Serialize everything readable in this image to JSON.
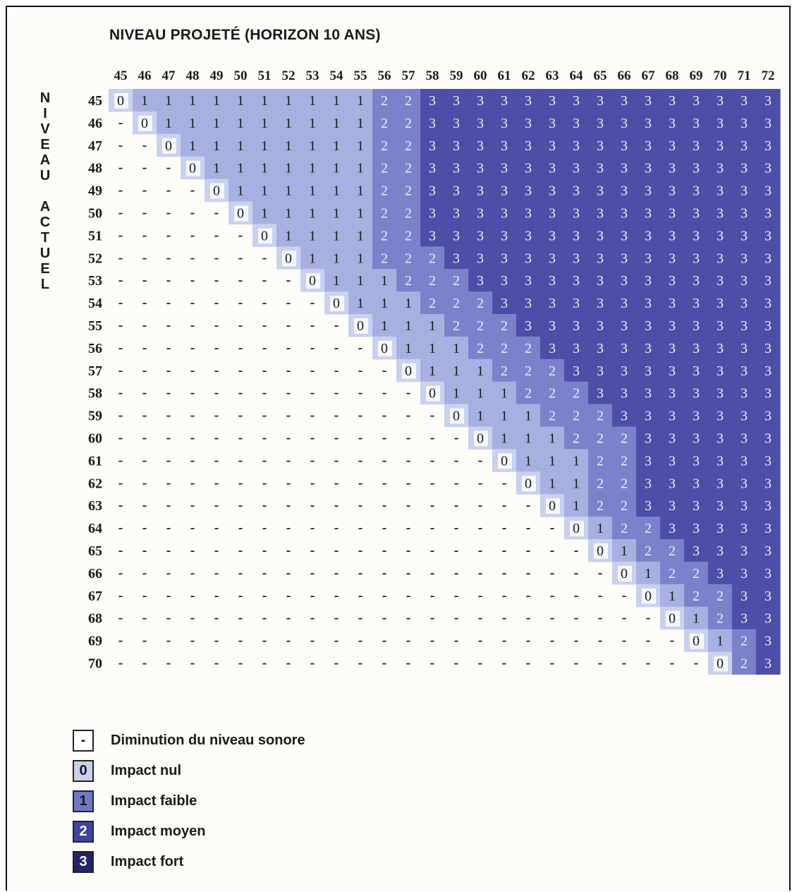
{
  "title": "NIVEAU PROJETÉ (HORIZON 10 ANS)",
  "row_axis_label": "NIVEAU ACTUEL",
  "colors": {
    "level_0": "#c9d1ee",
    "level_1": "#a6b1e1",
    "level_2": "#7b82cb",
    "level_3": "#4d4ea7",
    "empty": "#ffffff",
    "text_dark": "#1a1a1a",
    "text_light": "#eef0ff"
  },
  "legend": [
    {
      "symbol": "-",
      "label": "Diminution du niveau sonore",
      "fill": "#ffffff",
      "text": "#1a1a1a"
    },
    {
      "symbol": "0",
      "label": "Impact nul",
      "fill": "#c9d1ee",
      "text": "#1a1a1a"
    },
    {
      "symbol": "1",
      "label": "Impact faible",
      "fill": "#6f79c8",
      "text": "#1a1a1a"
    },
    {
      "symbol": "2",
      "label": "Impact moyen",
      "fill": "#3f43a0",
      "text": "#ffffff"
    },
    {
      "symbol": "3",
      "label": "Impact fort",
      "fill": "#24246a",
      "text": "#ffffff"
    }
  ],
  "chart_data": {
    "type": "heatmap",
    "title": "NIVEAU PROJETÉ (HORIZON 10 ANS)",
    "xlabel": "NIVEAU PROJETÉ (HORIZON 10 ANS)",
    "ylabel": "NIVEAU ACTUEL",
    "columns": [
      45,
      46,
      47,
      48,
      49,
      50,
      51,
      52,
      53,
      54,
      55,
      56,
      57,
      58,
      59,
      60,
      61,
      62,
      63,
      64,
      65,
      66,
      67,
      68,
      69,
      70,
      71,
      72
    ],
    "rows": [
      45,
      46,
      47,
      48,
      49,
      50,
      51,
      52,
      53,
      54,
      55,
      56,
      57,
      58,
      59,
      60,
      61,
      62,
      63,
      64,
      65,
      66,
      67,
      68,
      69,
      70
    ],
    "cells": [
      [
        "0",
        "1",
        "1",
        "1",
        "1",
        "1",
        "1",
        "1",
        "1",
        "1",
        "1",
        "2",
        "2",
        "3",
        "3",
        "3",
        "3",
        "3",
        "3",
        "3",
        "3",
        "3",
        "3",
        "3",
        "3",
        "3",
        "3",
        "3"
      ],
      [
        "-",
        "0",
        "1",
        "1",
        "1",
        "1",
        "1",
        "1",
        "1",
        "1",
        "1",
        "2",
        "2",
        "3",
        "3",
        "3",
        "3",
        "3",
        "3",
        "3",
        "3",
        "3",
        "3",
        "3",
        "3",
        "3",
        "3",
        "3"
      ],
      [
        "-",
        "-",
        "0",
        "1",
        "1",
        "1",
        "1",
        "1",
        "1",
        "1",
        "1",
        "2",
        "2",
        "3",
        "3",
        "3",
        "3",
        "3",
        "3",
        "3",
        "3",
        "3",
        "3",
        "3",
        "3",
        "3",
        "3",
        "3"
      ],
      [
        "-",
        "-",
        "-",
        "0",
        "1",
        "1",
        "1",
        "1",
        "1",
        "1",
        "1",
        "2",
        "2",
        "3",
        "3",
        "3",
        "3",
        "3",
        "3",
        "3",
        "3",
        "3",
        "3",
        "3",
        "3",
        "3",
        "3",
        "3"
      ],
      [
        "-",
        "-",
        "-",
        "-",
        "0",
        "1",
        "1",
        "1",
        "1",
        "1",
        "1",
        "2",
        "2",
        "3",
        "3",
        "3",
        "3",
        "3",
        "3",
        "3",
        "3",
        "3",
        "3",
        "3",
        "3",
        "3",
        "3",
        "3"
      ],
      [
        "-",
        "-",
        "-",
        "-",
        "-",
        "0",
        "1",
        "1",
        "1",
        "1",
        "1",
        "2",
        "2",
        "3",
        "3",
        "3",
        "3",
        "3",
        "3",
        "3",
        "3",
        "3",
        "3",
        "3",
        "3",
        "3",
        "3",
        "3"
      ],
      [
        "-",
        "-",
        "-",
        "-",
        "-",
        "-",
        "0",
        "1",
        "1",
        "1",
        "1",
        "2",
        "2",
        "3",
        "3",
        "3",
        "3",
        "3",
        "3",
        "3",
        "3",
        "3",
        "3",
        "3",
        "3",
        "3",
        "3",
        "3"
      ],
      [
        "-",
        "-",
        "-",
        "-",
        "-",
        "-",
        "-",
        "0",
        "1",
        "1",
        "1",
        "2",
        "2",
        "2",
        "3",
        "3",
        "3",
        "3",
        "3",
        "3",
        "3",
        "3",
        "3",
        "3",
        "3",
        "3",
        "3",
        "3"
      ],
      [
        "-",
        "-",
        "-",
        "-",
        "-",
        "-",
        "-",
        "-",
        "0",
        "1",
        "1",
        "1",
        "2",
        "2",
        "2",
        "3",
        "3",
        "3",
        "3",
        "3",
        "3",
        "3",
        "3",
        "3",
        "3",
        "3",
        "3",
        "3"
      ],
      [
        "-",
        "-",
        "-",
        "-",
        "-",
        "-",
        "-",
        "-",
        "-",
        "0",
        "1",
        "1",
        "1",
        "2",
        "2",
        "2",
        "3",
        "3",
        "3",
        "3",
        "3",
        "3",
        "3",
        "3",
        "3",
        "3",
        "3",
        "3"
      ],
      [
        "-",
        "-",
        "-",
        "-",
        "-",
        "-",
        "-",
        "-",
        "-",
        "-",
        "0",
        "1",
        "1",
        "1",
        "2",
        "2",
        "2",
        "3",
        "3",
        "3",
        "3",
        "3",
        "3",
        "3",
        "3",
        "3",
        "3",
        "3"
      ],
      [
        "-",
        "-",
        "-",
        "-",
        "-",
        "-",
        "-",
        "-",
        "-",
        "-",
        "-",
        "0",
        "1",
        "1",
        "1",
        "2",
        "2",
        "2",
        "3",
        "3",
        "3",
        "3",
        "3",
        "3",
        "3",
        "3",
        "3",
        "3"
      ],
      [
        "-",
        "-",
        "-",
        "-",
        "-",
        "-",
        "-",
        "-",
        "-",
        "-",
        "-",
        "-",
        "0",
        "1",
        "1",
        "1",
        "2",
        "2",
        "2",
        "3",
        "3",
        "3",
        "3",
        "3",
        "3",
        "3",
        "3",
        "3"
      ],
      [
        "-",
        "-",
        "-",
        "-",
        "-",
        "-",
        "-",
        "-",
        "-",
        "-",
        "-",
        "-",
        "-",
        "0",
        "1",
        "1",
        "1",
        "2",
        "2",
        "2",
        "3",
        "3",
        "3",
        "3",
        "3",
        "3",
        "3",
        "3"
      ],
      [
        "-",
        "-",
        "-",
        "-",
        "-",
        "-",
        "-",
        "-",
        "-",
        "-",
        "-",
        "-",
        "-",
        "-",
        "0",
        "1",
        "1",
        "1",
        "2",
        "2",
        "2",
        "3",
        "3",
        "3",
        "3",
        "3",
        "3",
        "3"
      ],
      [
        "-",
        "-",
        "-",
        "-",
        "-",
        "-",
        "-",
        "-",
        "-",
        "-",
        "-",
        "-",
        "-",
        "-",
        "-",
        "0",
        "1",
        "1",
        "1",
        "2",
        "2",
        "2",
        "3",
        "3",
        "3",
        "3",
        "3",
        "3"
      ],
      [
        "-",
        "-",
        "-",
        "-",
        "-",
        "-",
        "-",
        "-",
        "-",
        "-",
        "-",
        "-",
        "-",
        "-",
        "-",
        "-",
        "0",
        "1",
        "1",
        "1",
        "2",
        "2",
        "3",
        "3",
        "3",
        "3",
        "3",
        "3"
      ],
      [
        "-",
        "-",
        "-",
        "-",
        "-",
        "-",
        "-",
        "-",
        "-",
        "-",
        "-",
        "-",
        "-",
        "-",
        "-",
        "-",
        "-",
        "0",
        "1",
        "1",
        "2",
        "2",
        "3",
        "3",
        "3",
        "3",
        "3",
        "3"
      ],
      [
        "-",
        "-",
        "-",
        "-",
        "-",
        "-",
        "-",
        "-",
        "-",
        "-",
        "-",
        "-",
        "-",
        "-",
        "-",
        "-",
        "-",
        "-",
        "0",
        "1",
        "2",
        "2",
        "3",
        "3",
        "3",
        "3",
        "3",
        "3"
      ],
      [
        "-",
        "-",
        "-",
        "-",
        "-",
        "-",
        "-",
        "-",
        "-",
        "-",
        "-",
        "-",
        "-",
        "-",
        "-",
        "-",
        "-",
        "-",
        "-",
        "0",
        "1",
        "2",
        "2",
        "3",
        "3",
        "3",
        "3",
        "3"
      ],
      [
        "-",
        "-",
        "-",
        "-",
        "-",
        "-",
        "-",
        "-",
        "-",
        "-",
        "-",
        "-",
        "-",
        "-",
        "-",
        "-",
        "-",
        "-",
        "-",
        "-",
        "0",
        "1",
        "2",
        "2",
        "3",
        "3",
        "3",
        "3"
      ],
      [
        "-",
        "-",
        "-",
        "-",
        "-",
        "-",
        "-",
        "-",
        "-",
        "-",
        "-",
        "-",
        "-",
        "-",
        "-",
        "-",
        "-",
        "-",
        "-",
        "-",
        "-",
        "0",
        "1",
        "2",
        "2",
        "3",
        "3",
        "3"
      ],
      [
        "-",
        "-",
        "-",
        "-",
        "-",
        "-",
        "-",
        "-",
        "-",
        "-",
        "-",
        "-",
        "-",
        "-",
        "-",
        "-",
        "-",
        "-",
        "-",
        "-",
        "-",
        "-",
        "0",
        "1",
        "2",
        "2",
        "3",
        "3"
      ],
      [
        "-",
        "-",
        "-",
        "-",
        "-",
        "-",
        "-",
        "-",
        "-",
        "-",
        "-",
        "-",
        "-",
        "-",
        "-",
        "-",
        "-",
        "-",
        "-",
        "-",
        "-",
        "-",
        "-",
        "0",
        "1",
        "2",
        "3",
        "3"
      ],
      [
        "-",
        "-",
        "-",
        "-",
        "-",
        "-",
        "-",
        "-",
        "-",
        "-",
        "-",
        "-",
        "-",
        "-",
        "-",
        "-",
        "-",
        "-",
        "-",
        "-",
        "-",
        "-",
        "-",
        "-",
        "0",
        "1",
        "2",
        "3"
      ],
      [
        "-",
        "-",
        "-",
        "-",
        "-",
        "-",
        "-",
        "-",
        "-",
        "-",
        "-",
        "-",
        "-",
        "-",
        "-",
        "-",
        "-",
        "-",
        "-",
        "-",
        "-",
        "-",
        "-",
        "-",
        "-",
        "0",
        "2",
        "3"
      ]
    ]
  }
}
